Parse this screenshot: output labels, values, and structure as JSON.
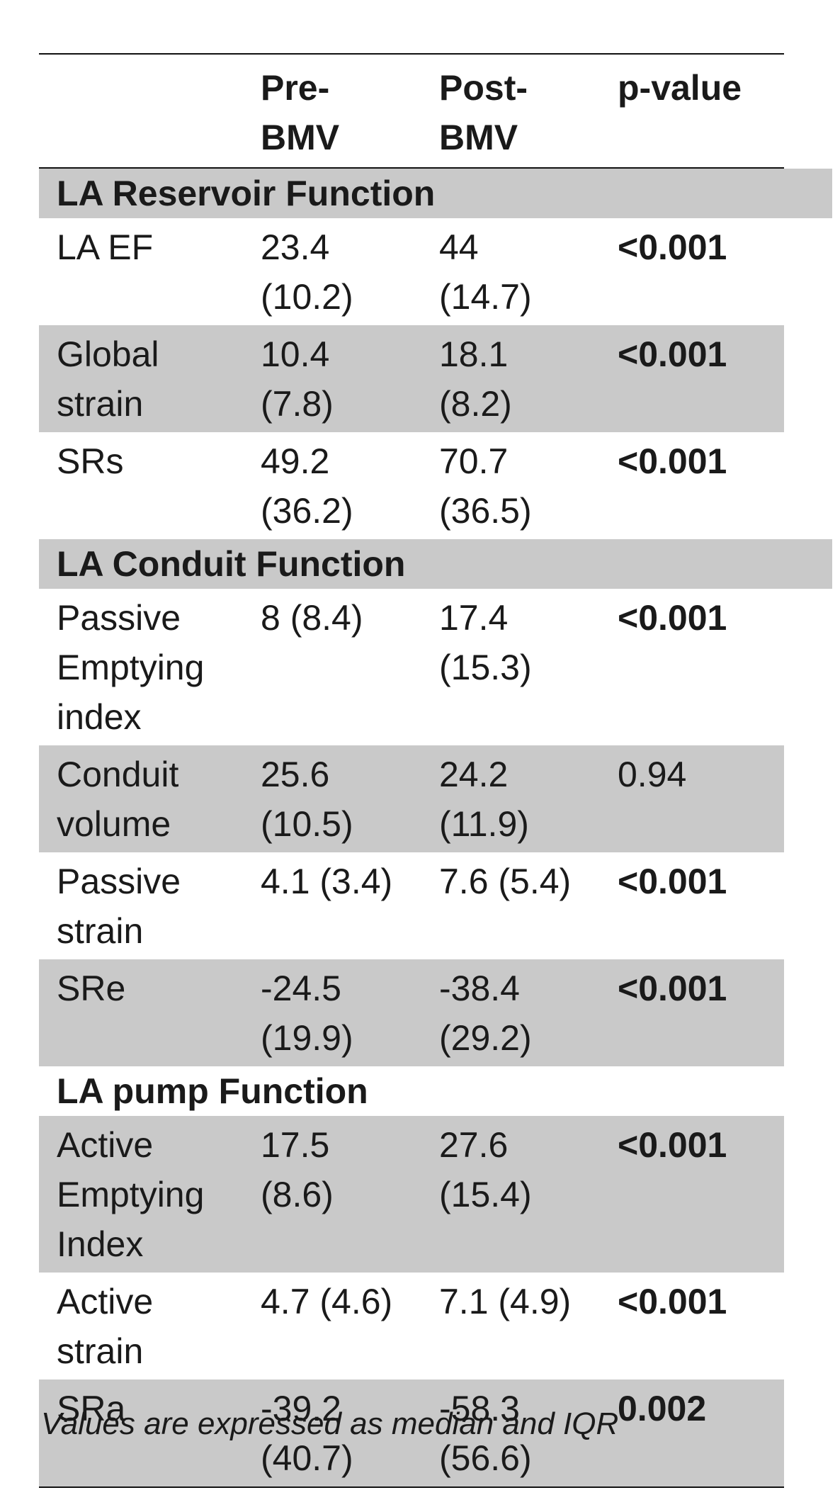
{
  "table": {
    "headers": [
      "",
      "Pre-\nBMV",
      "Post-\nBMV",
      "p-value"
    ],
    "sections": [
      {
        "title": "LA Reservoir Function",
        "rows": [
          {
            "label": "LA EF",
            "pre": "23.4\n(10.2)",
            "post": "44\n(14.7)",
            "p": "<0.001",
            "p_bold": true
          },
          {
            "label": "Global\nstrain",
            "pre": "10.4\n(7.8)",
            "post": "18.1\n(8.2)",
            "p": "<0.001",
            "p_bold": true
          },
          {
            "label": "SRs",
            "pre": "49.2\n(36.2)",
            "post": "70.7\n(36.5)",
            "p": "<0.001",
            "p_bold": true
          }
        ]
      },
      {
        "title": "LA Conduit Function",
        "rows": [
          {
            "label": "Passive\nEmptying\nindex",
            "pre": "8 (8.4)",
            "post": "17.4\n(15.3)",
            "p": "<0.001",
            "p_bold": true
          },
          {
            "label": "Conduit\nvolume",
            "pre": "25.6\n(10.5)",
            "post": "24.2\n(11.9)",
            "p": "0.94",
            "p_bold": false
          },
          {
            "label": "Passive\nstrain",
            "pre": "4.1 (3.4)",
            "post": "7.6 (5.4)",
            "p": "<0.001",
            "p_bold": true
          },
          {
            "label": "SRe",
            "pre": "-24.5\n(19.9)",
            "post": "-38.4\n(29.2)",
            "p": "<0.001",
            "p_bold": true
          }
        ]
      },
      {
        "title": "LA pump Function",
        "rows": [
          {
            "label": "Active\nEmptying\nIndex",
            "pre": "17.5\n(8.6)",
            "post": "27.6\n(15.4)",
            "p": "<0.001",
            "p_bold": true
          },
          {
            "label": "Active\nstrain",
            "pre": "4.7 (4.6)",
            "post": "7.1 (4.9)",
            "p": "<0.001",
            "p_bold": true
          },
          {
            "label": "SRa",
            "pre": "-39.2\n(40.7)",
            "post": "-58.3\n(56.6)",
            "p": "0.002",
            "p_bold": true
          }
        ]
      }
    ]
  },
  "caption": "Values are expressed as median and IQR",
  "colors": {
    "shade": "#c9c9c9",
    "rule": "#111111",
    "text": "#1a1a1a"
  }
}
